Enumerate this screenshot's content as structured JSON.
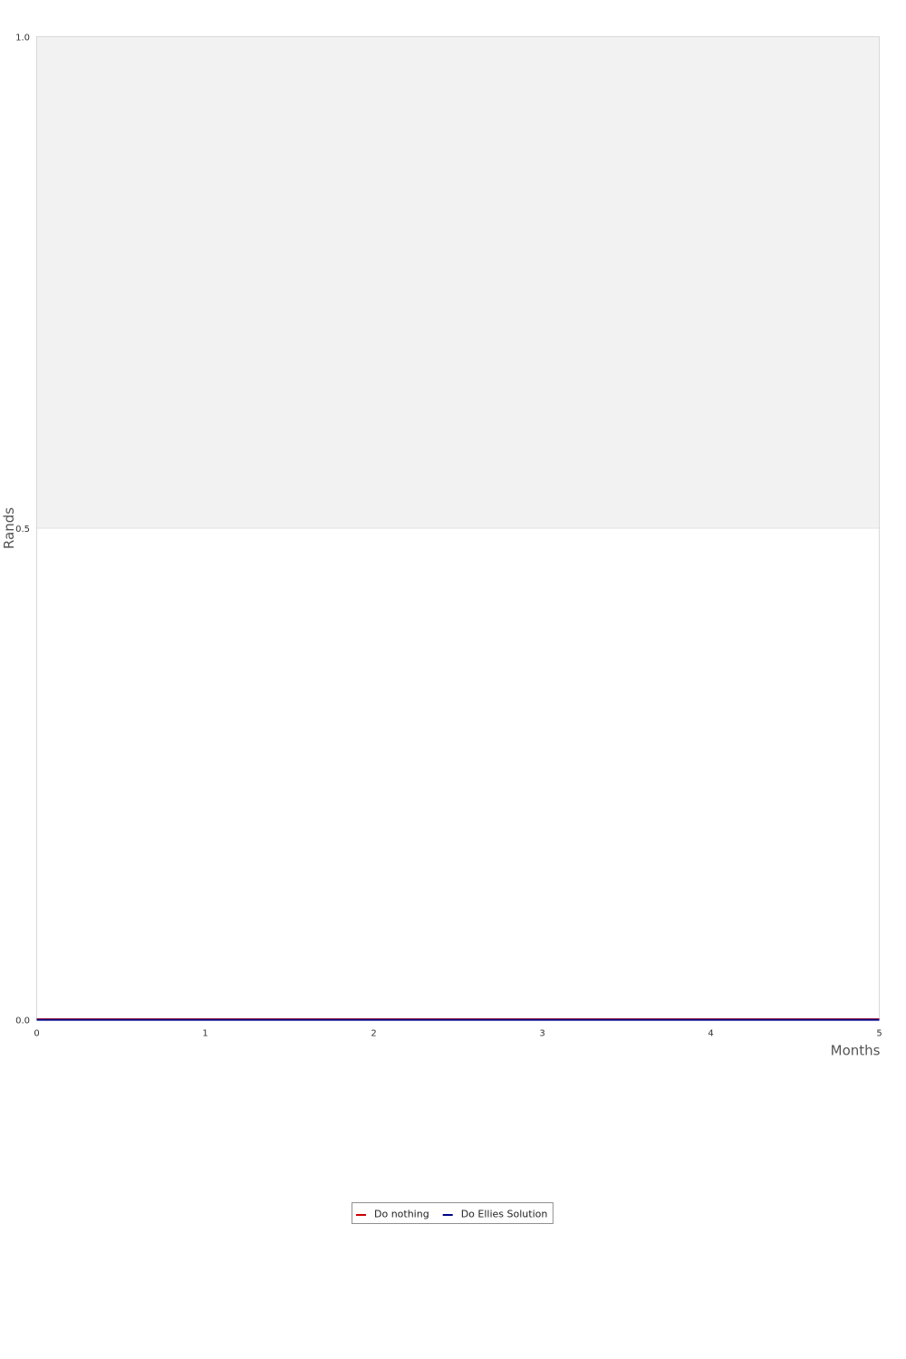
{
  "chart_data": {
    "type": "line",
    "title": "",
    "xlabel": "Months",
    "ylabel": "Rands",
    "xlim": [
      0,
      5
    ],
    "ylim": [
      0,
      1
    ],
    "x_ticks": [
      0,
      1,
      2,
      3,
      4,
      5
    ],
    "x_tick_labels": [
      "0",
      "1",
      "2",
      "3",
      "4",
      "5"
    ],
    "y_ticks": [
      0,
      0.5,
      1
    ],
    "y_tick_labels": [
      "0.0",
      "0.5",
      "1.0"
    ],
    "bands": [
      {
        "from": 0.5,
        "to": 1.0,
        "color": "#f2f2f2"
      }
    ],
    "x": [
      0,
      5
    ],
    "series": [
      {
        "name": "Do nothing",
        "color": "#cc0000",
        "values": [
          0,
          0
        ]
      },
      {
        "name": "Do Ellies Solution",
        "color": "#00008b",
        "values": [
          0,
          0
        ]
      }
    ],
    "legend_position": "bottom-center"
  }
}
